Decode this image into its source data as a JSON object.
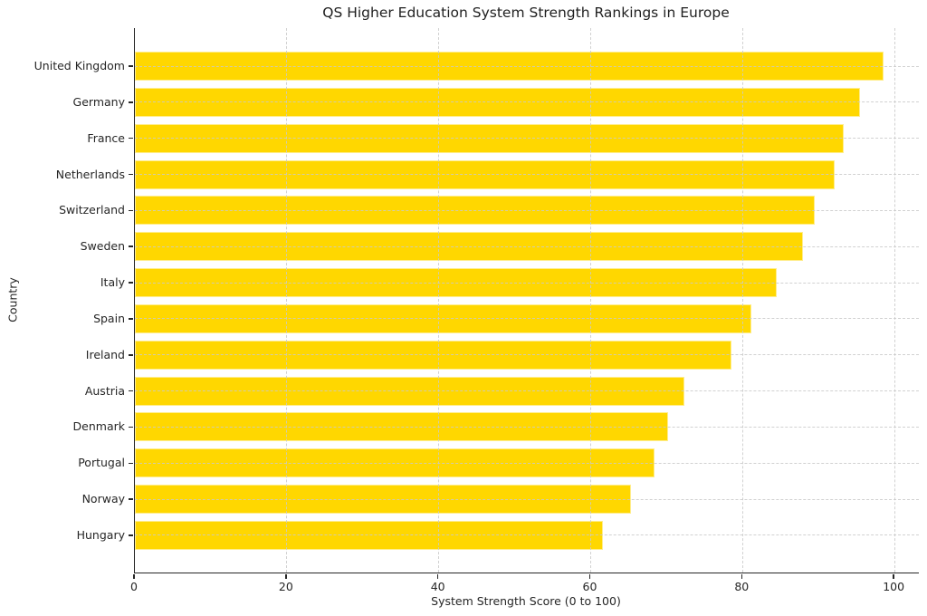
{
  "chart_data": {
    "type": "bar",
    "orientation": "horizontal",
    "title": "QS Higher Education System Strength Rankings in Europe",
    "xlabel": "System Strength Score (0 to 100)",
    "ylabel": "Country",
    "categories": [
      "United Kingdom",
      "Germany",
      "France",
      "Netherlands",
      "Switzerland",
      "Sweden",
      "Italy",
      "Spain",
      "Ireland",
      "Austria",
      "Denmark",
      "Portugal",
      "Norway",
      "Hungary"
    ],
    "values": [
      98.5,
      95.4,
      93.3,
      92.1,
      89.5,
      88.0,
      84.5,
      81.2,
      78.5,
      72.3,
      70.2,
      68.4,
      65.3,
      61.6
    ],
    "xticks": [
      0,
      20,
      40,
      60,
      80,
      100
    ],
    "xlim": [
      0,
      103.2
    ],
    "bar_color": "#FFD700",
    "bar_edge_color": "#FFFFFF",
    "grid": {
      "show": true,
      "axes": "both",
      "style": "dashed",
      "color": "#C9C9C9"
    },
    "legend": "none",
    "background": "#FFFFFF"
  }
}
